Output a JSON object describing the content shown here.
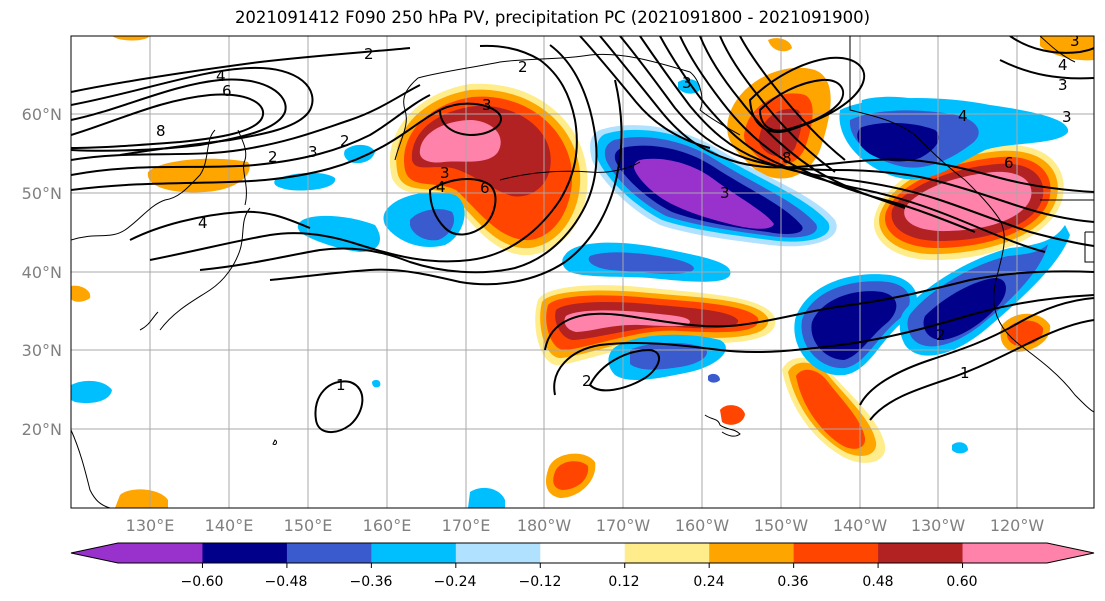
{
  "title": "2021091412 F090 250 hPa PV, precipitation PC (2021091800 - 2021091900)",
  "map": {
    "lon_labels": [
      "130°E",
      "140°E",
      "150°E",
      "160°E",
      "170°E",
      "180°W",
      "170°W",
      "160°W",
      "150°W",
      "140°W",
      "130°W",
      "120°W"
    ],
    "lat_labels": [
      "60°N",
      "50°N",
      "40°N",
      "30°N",
      "20°N"
    ],
    "contour_labels": [
      "2",
      "4",
      "6",
      "8",
      "2",
      "3",
      "2",
      "4",
      "3",
      "6",
      "3",
      "2",
      "3",
      "4",
      "3",
      "6",
      "8",
      "3",
      "4",
      "3",
      "4",
      "3",
      "1",
      "2",
      "2",
      "1"
    ]
  },
  "colorbar": {
    "levels": [
      "−0.60",
      "−0.48",
      "−0.36",
      "−0.24",
      "−0.12",
      "0.12",
      "0.24",
      "0.36",
      "0.48",
      "0.60"
    ],
    "colors": {
      "under": "#9932CC",
      "bins": [
        "#9932CC",
        "#00008B",
        "#3A5BCD",
        "#00BFFF",
        "#B0E2FF",
        "#FFFFFF",
        "#FFEC8B",
        "#FFA500",
        "#FF4500",
        "#B22222",
        "#FF82AB"
      ],
      "over": "#FF82AB"
    }
  }
}
